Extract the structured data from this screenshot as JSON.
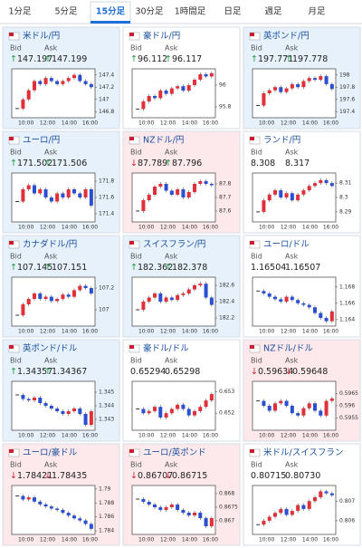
{
  "tabs": [
    "1分足",
    "5分足",
    "15分足",
    "30分足",
    "1時間足",
    "日足",
    "週足",
    "月足"
  ],
  "active_tab": 2,
  "labels": {
    "bid": "Bid",
    "ask": "Ask"
  },
  "x_labels": [
    "10:00",
    "12:00",
    "14:00",
    "16:00"
  ],
  "pairs": [
    {
      "name": "米ドル/円",
      "trend": "up",
      "bid_arrow": "↑",
      "bid": "147.197",
      "ask_arrow": "↑",
      "ask": "147.199",
      "ylim": [
        146.7,
        147.5
      ],
      "yticks": [
        147.4,
        147.2,
        147,
        146.8
      ],
      "closes": [
        146.85,
        147.0,
        147.15,
        147.3,
        147.25,
        147.35,
        147.3,
        147.25,
        147.3,
        147.35,
        147.4,
        147.3,
        147.25,
        147.2
      ]
    },
    {
      "name": "豪ドル/円",
      "bid_arrow": "↑",
      "bid": "96.112",
      "ask_arrow": "↑",
      "ask": "96.117",
      "ylim": [
        95.7,
        96.15
      ],
      "yticks": [
        96,
        95.8
      ],
      "closes": [
        95.78,
        95.85,
        95.9,
        95.88,
        95.95,
        95.92,
        95.97,
        95.99,
        95.95,
        96.0,
        96.05,
        96.1,
        96.08,
        96.11
      ]
    },
    {
      "name": "英ポンド/円",
      "trend": "up",
      "bid_arrow": "↑",
      "bid": "197.771",
      "ask_arrow": "↑",
      "ask": "197.778",
      "ylim": [
        197.3,
        198.1
      ],
      "yticks": [
        198,
        197.8,
        197.6,
        197.4
      ],
      "closes": [
        197.5,
        197.7,
        197.75,
        197.8,
        197.72,
        197.78,
        197.85,
        197.8,
        197.9,
        197.95,
        197.92,
        197.98,
        197.85,
        197.77
      ]
    },
    {
      "name": "ユーロ/円",
      "trend": "up",
      "bid_arrow": "↑",
      "bid": "171.502",
      "ask_arrow": "↑",
      "ask": "171.506",
      "ylim": [
        171.3,
        171.9
      ],
      "yticks": [
        171.8,
        171.6,
        171.4
      ],
      "closes": [
        171.55,
        171.7,
        171.75,
        171.65,
        171.7,
        171.6,
        171.55,
        171.65,
        171.6,
        171.7,
        171.65,
        171.6,
        171.7,
        171.5
      ]
    },
    {
      "name": "NZドル/円",
      "trend": "down",
      "bid_arrow": "↓",
      "bid": "87.789",
      "ask_arrow": "↑",
      "ask": "87.796",
      "ylim": [
        87.52,
        87.88
      ],
      "yticks": [
        87.8,
        87.7,
        87.6
      ],
      "closes": [
        87.6,
        87.68,
        87.72,
        87.78,
        87.8,
        87.75,
        87.72,
        87.76,
        87.7,
        87.74,
        87.8,
        87.82,
        87.8,
        87.79
      ]
    },
    {
      "name": "ランド/円",
      "bid": "8.308",
      "ask": "8.317",
      "ylim": [
        8.283,
        8.317
      ],
      "yticks": [
        8.31,
        8.3,
        8.29
      ],
      "closes": [
        8.29,
        8.298,
        8.302,
        8.305,
        8.3,
        8.303,
        8.298,
        8.302,
        8.305,
        8.308,
        8.31,
        8.312,
        8.31,
        8.308
      ]
    },
    {
      "name": "カナダドル/円",
      "trend": "up",
      "bid_arrow": "↑",
      "bid": "107.145",
      "ask_arrow": "↑",
      "ask": "107.151",
      "ylim": [
        106.85,
        107.3
      ],
      "yticks": [
        107.2,
        107
      ],
      "closes": [
        106.95,
        107.05,
        107.1,
        107.15,
        107.1,
        107.12,
        107.08,
        107.1,
        107.14,
        107.12,
        107.18,
        107.22,
        107.2,
        107.15
      ]
    },
    {
      "name": "スイスフラン/円",
      "trend": "up",
      "bid_arrow": "↑",
      "bid": "182.362",
      "ask_arrow": "↑",
      "ask": "182.378",
      "ylim": [
        182.1,
        182.7
      ],
      "yticks": [
        182.6,
        182.4,
        182.2
      ],
      "closes": [
        182.3,
        182.4,
        182.45,
        182.5,
        182.4,
        182.45,
        182.42,
        182.48,
        182.5,
        182.55,
        182.6,
        182.62,
        182.45,
        182.36
      ]
    },
    {
      "name": "ユーロ/ドル",
      "bid": "1.16504",
      "ask": "1.16507",
      "ylim": [
        1.1632,
        1.1692
      ],
      "yticks": [
        1.168,
        1.166,
        1.164
      ],
      "closes": [
        1.1675,
        1.1672,
        1.1668,
        1.1665,
        1.1662,
        1.1668,
        1.1664,
        1.166,
        1.1658,
        1.1655,
        1.1648,
        1.1642,
        1.1638,
        1.165
      ]
    },
    {
      "name": "英ポンド/ドル",
      "trend": "up",
      "bid_arrow": "↑",
      "bid": "1.34357",
      "ask_arrow": "↑",
      "ask": "1.34367",
      "ylim": [
        1.3422,
        1.3458
      ],
      "yticks": [
        1.345,
        1.344,
        1.343
      ],
      "closes": [
        1.3448,
        1.3445,
        1.3444,
        1.3446,
        1.3442,
        1.344,
        1.3438,
        1.3436,
        1.3434,
        1.3436,
        1.3438,
        1.3434,
        1.3426,
        1.3436
      ]
    },
    {
      "name": "豪ドル/ドル",
      "bid": "0.65294",
      "ask": "0.65298",
      "ylim": [
        0.6512,
        0.6535
      ],
      "yticks": [
        0.653,
        0.652
      ],
      "closes": [
        0.6522,
        0.652,
        0.6521,
        0.6523,
        0.6518,
        0.652,
        0.6522,
        0.6524,
        0.6522,
        0.6519,
        0.6521,
        0.6523,
        0.6526,
        0.6529
      ]
    },
    {
      "name": "NZドル/ドル",
      "trend": "down",
      "bid_arrow": "↓",
      "bid": "0.59634",
      "ask_arrow": "↓",
      "ask": "0.59648",
      "ylim": [
        0.595,
        0.597
      ],
      "yticks": [
        0.5965,
        0.596,
        0.5955
      ],
      "closes": [
        0.5962,
        0.596,
        0.5958,
        0.5961,
        0.5962,
        0.596,
        0.5957,
        0.5956,
        0.5959,
        0.5961,
        0.5958,
        0.5956,
        0.5962,
        0.5963
      ]
    },
    {
      "name": "ユーロ/豪ドル",
      "trend": "down",
      "bid_arrow": "↓",
      "bid": "1.78421",
      "ask_arrow": "↓",
      "ask": "1.78435",
      "ylim": [
        1.7835,
        1.7905
      ],
      "yticks": [
        1.79,
        1.788,
        1.786,
        1.784
      ],
      "closes": [
        1.789,
        1.7885,
        1.7888,
        1.7882,
        1.7878,
        1.7875,
        1.7872,
        1.787,
        1.7866,
        1.7862,
        1.7858,
        1.7855,
        1.785,
        1.7843
      ]
    },
    {
      "name": "ユーロ/英ポンド",
      "trend": "down",
      "bid_arrow": "↓",
      "bid": "0.86707",
      "ask_arrow": "↓",
      "ask": "0.86715",
      "ylim": [
        0.8665,
        0.8683
      ],
      "yticks": [
        0.868,
        0.8675,
        0.867
      ],
      "closes": [
        0.8678,
        0.8677,
        0.8676,
        0.8675,
        0.8674,
        0.8675,
        0.8676,
        0.8674,
        0.8673,
        0.8672,
        0.8673,
        0.8671,
        0.8668,
        0.8671
      ]
    },
    {
      "name": "米ドル/スイスフラン",
      "bid": "0.80715",
      "ask": "0.80730",
      "ylim": [
        0.8053,
        0.8078
      ],
      "yticks": [
        0.807,
        0.806
      ],
      "closes": [
        0.8058,
        0.806,
        0.8062,
        0.8064,
        0.8066,
        0.8063,
        0.8065,
        0.8068,
        0.8066,
        0.807,
        0.8072,
        0.8075,
        0.8074,
        0.8073
      ]
    }
  ]
}
